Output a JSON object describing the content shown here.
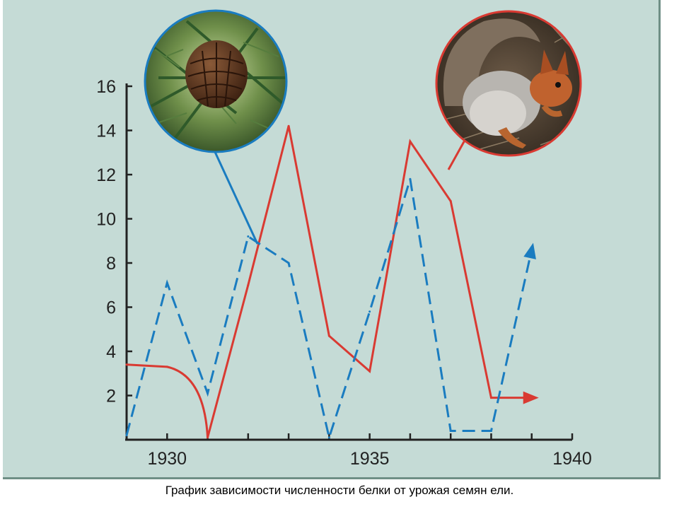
{
  "caption": "График зависимости численности белки от урожая семян  ели.",
  "colors": {
    "background": "#c5dbd6",
    "squirrel": "#d93a32",
    "seeds": "#1a7cc0",
    "axis": "#222222"
  },
  "icons": {
    "seed_photo": "spruce-cone-icon",
    "squirrel_photo": "red-squirrel-icon"
  },
  "chart_data": {
    "type": "line",
    "title": "",
    "xlabel": "",
    "ylabel": "",
    "xlim": [
      1929,
      1940
    ],
    "ylim": [
      0,
      16
    ],
    "x_ticks": [
      1930,
      1935,
      1940
    ],
    "y_ticks": [
      2,
      4,
      6,
      8,
      10,
      12,
      14,
      16
    ],
    "grid": false,
    "legend": "none",
    "series": [
      {
        "style": "solid",
        "color": "#d93a32",
        "points": [
          [
            1929,
            3.4
          ],
          [
            1930,
            3.3
          ],
          [
            1931,
            0.1
          ],
          [
            1932,
            7.0
          ],
          [
            1933,
            14.2
          ],
          [
            1934,
            4.7
          ],
          [
            1935,
            3.1
          ],
          [
            1936,
            13.5
          ],
          [
            1937,
            10.8
          ],
          [
            1938,
            1.9
          ],
          [
            1939,
            1.9
          ]
        ],
        "end_arrow": true
      },
      {
        "style": "dashed",
        "color": "#1a7cc0",
        "points": [
          [
            1929,
            0.2
          ],
          [
            1930,
            7.1
          ],
          [
            1931,
            2.1
          ],
          [
            1932,
            9.2
          ],
          [
            1933,
            8.0
          ],
          [
            1934,
            0.1
          ],
          [
            1935,
            5.8
          ],
          [
            1936,
            11.8
          ],
          [
            1937,
            0.4
          ],
          [
            1938,
            0.4
          ],
          [
            1939,
            8.6
          ]
        ],
        "end_arrow": true
      }
    ]
  }
}
